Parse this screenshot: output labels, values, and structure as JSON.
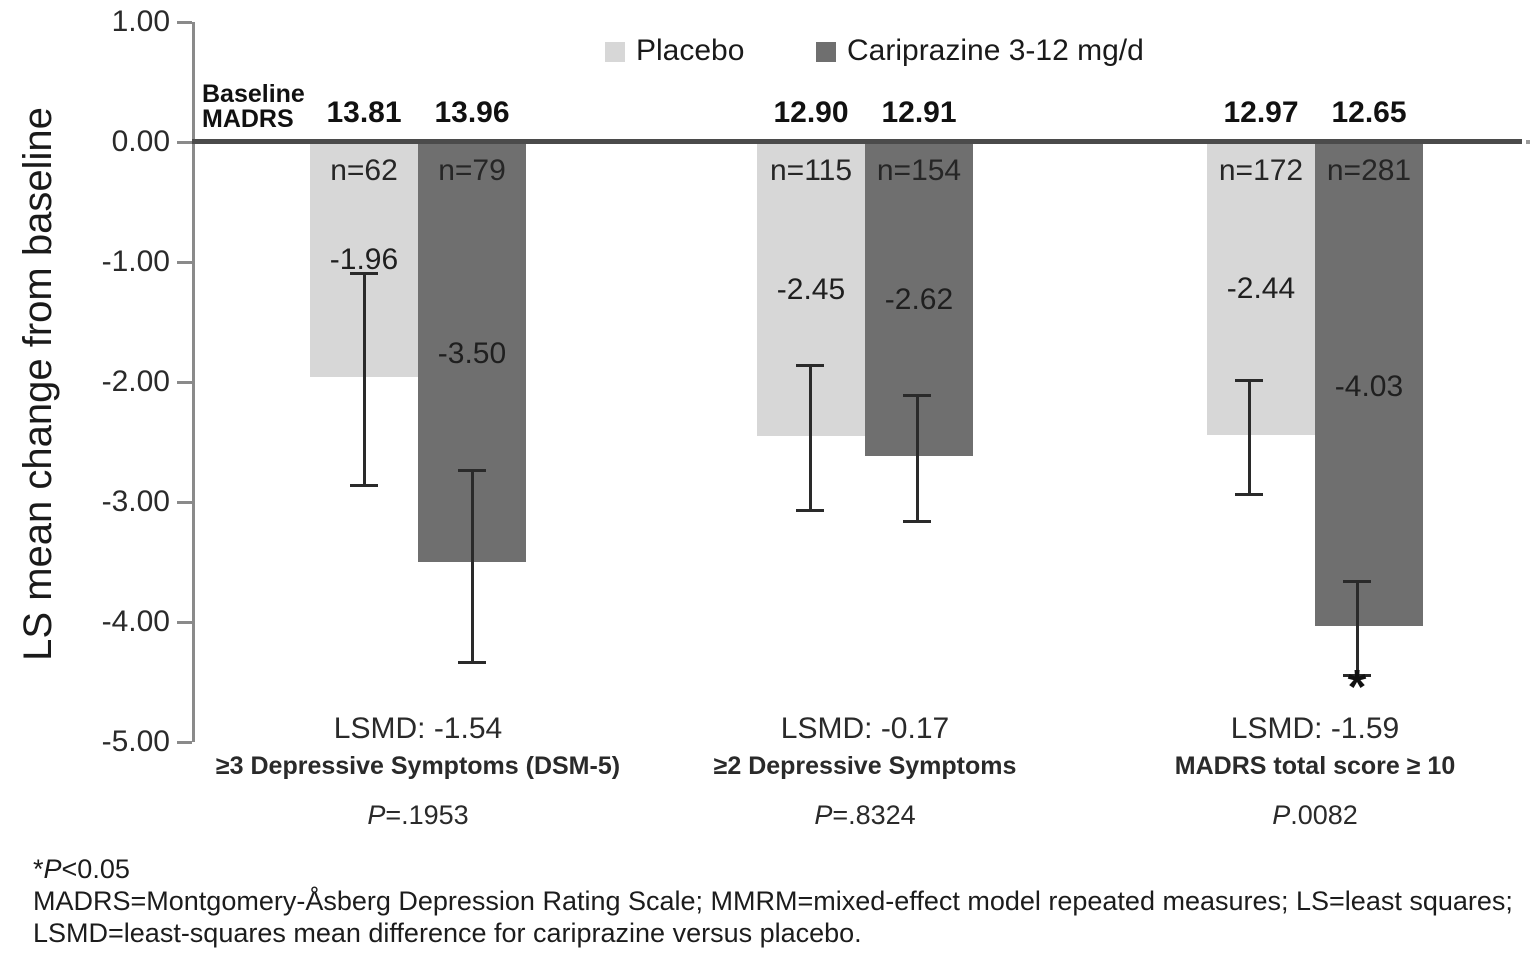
{
  "chart_data": {
    "type": "bar",
    "title": "",
    "ylabel": "LS mean change from baseline",
    "ylim": [
      -5.0,
      1.0
    ],
    "grid": false,
    "legend_position": "top",
    "ytick_values": [
      1.0,
      0.0,
      -1.0,
      -2.0,
      -3.0,
      -4.0,
      -5.0
    ],
    "ytick_labels": [
      "1.00",
      "0.00",
      "-1.00",
      "-2.00",
      "-3.00",
      "-4.00",
      "-5.00"
    ],
    "baseline_header_lines": [
      "Baseline",
      "MADRS"
    ],
    "series": [
      {
        "name": "Placebo",
        "color": "#d7d7d7"
      },
      {
        "name": "Cariprazine 3-12 mg/d",
        "color": "#6f6f6f"
      }
    ],
    "groups": [
      {
        "label": "≥3 Depressive Symptoms (DSM-5)",
        "lsmd_label": "LSMD: -1.54",
        "p_label": "P=.1953",
        "bars": [
          {
            "series": "Placebo",
            "baseline_madrs": "13.81",
            "n_label": "n=62",
            "value": -1.96,
            "value_label": "-1.96",
            "error_bar": [
              -1.09,
              -2.86
            ],
            "significant": false
          },
          {
            "series": "Cariprazine 3-12 mg/d",
            "baseline_madrs": "13.96",
            "n_label": "n=79",
            "value": -3.5,
            "value_label": "-3.50",
            "error_bar": [
              -2.73,
              -4.33
            ],
            "significant": false
          }
        ]
      },
      {
        "label": "≥2 Depressive Symptoms",
        "lsmd_label": "LSMD: -0.17",
        "p_label": "P=.8324",
        "bars": [
          {
            "series": "Placebo",
            "baseline_madrs": "12.90",
            "n_label": "n=115",
            "value": -2.45,
            "value_label": "-2.45",
            "error_bar": [
              -1.86,
              -3.07
            ],
            "significant": false
          },
          {
            "series": "Cariprazine 3-12 mg/d",
            "baseline_madrs": "12.91",
            "n_label": "n=154",
            "value": -2.62,
            "value_label": "-2.62",
            "error_bar": [
              -2.11,
              -3.16
            ],
            "significant": false
          }
        ]
      },
      {
        "label": "MADRS total score ≥ 10",
        "lsmd_label": "LSMD: -1.59",
        "p_label": "P.0082",
        "bars": [
          {
            "series": "Placebo",
            "baseline_madrs": "12.97",
            "n_label": "n=172",
            "value": -2.44,
            "value_label": "-2.44",
            "error_bar": [
              -1.98,
              -2.93
            ],
            "significant": false
          },
          {
            "series": "Cariprazine 3-12 mg/d",
            "baseline_madrs": "12.65",
            "n_label": "n=281",
            "value": -4.03,
            "value_label": "-4.03",
            "error_bar": [
              -3.66,
              -4.44
            ],
            "significant": true
          }
        ]
      }
    ],
    "significance_marker": "*",
    "footnotes": [
      "*P<0.05",
      "MADRS=Montgomery-Åsberg Depression Rating Scale; MMRM=mixed-effect model repeated measures; LS=least squares;",
      "LSMD=least-squares mean difference for cariprazine versus placebo."
    ],
    "colors": {
      "placebo_bar": "#d7d7d7",
      "cariprazine_bar": "#6f6f6f",
      "zero_line": "#4b4b4b",
      "axis": "#8a8a8a",
      "text": "#1e1e1e"
    }
  }
}
